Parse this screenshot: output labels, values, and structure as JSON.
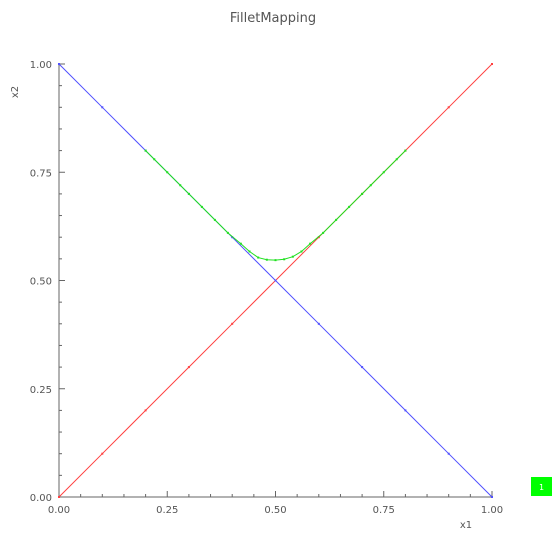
{
  "chart_data": {
    "type": "line",
    "title": "FilletMapping",
    "xlabel": "x1",
    "ylabel": "x2",
    "xlim": [
      0,
      1
    ],
    "ylim": [
      0,
      1
    ],
    "x_ticks": [
      "0.00",
      "0.25",
      "0.50",
      "0.75",
      "1.00"
    ],
    "y_ticks": [
      "0.00",
      "0.25",
      "0.50",
      "0.75",
      "1.00"
    ],
    "grid": false,
    "series": [
      {
        "color": "#ff4040",
        "points": [
          [
            0,
            0
          ],
          [
            0.1,
            0.1
          ],
          [
            0.2,
            0.2
          ],
          [
            0.3,
            0.3
          ],
          [
            0.4,
            0.4
          ],
          [
            0.5,
            0.5
          ],
          [
            0.6,
            0.6
          ],
          [
            0.7,
            0.7
          ],
          [
            0.8,
            0.8
          ],
          [
            0.9,
            0.9
          ],
          [
            1.0,
            1.0
          ]
        ]
      },
      {
        "color": "#5050ff",
        "points": [
          [
            0,
            1.0
          ],
          [
            0.1,
            0.9
          ],
          [
            0.2,
            0.8
          ],
          [
            0.3,
            0.7
          ],
          [
            0.4,
            0.6
          ],
          [
            0.5,
            0.5
          ],
          [
            0.6,
            0.4
          ],
          [
            0.7,
            0.3
          ],
          [
            0.8,
            0.2
          ],
          [
            0.9,
            0.1
          ],
          [
            1.0,
            0
          ]
        ]
      },
      {
        "color": "#20e020",
        "points": [
          [
            0.2,
            0.8
          ],
          [
            0.22,
            0.78
          ],
          [
            0.25,
            0.75
          ],
          [
            0.28,
            0.72
          ],
          [
            0.3,
            0.7
          ],
          [
            0.33,
            0.67
          ],
          [
            0.36,
            0.64
          ],
          [
            0.39,
            0.61
          ],
          [
            0.42,
            0.585
          ],
          [
            0.44,
            0.567
          ],
          [
            0.46,
            0.553
          ],
          [
            0.48,
            0.548
          ],
          [
            0.5,
            0.547
          ],
          [
            0.52,
            0.549
          ],
          [
            0.54,
            0.555
          ],
          [
            0.56,
            0.567
          ],
          [
            0.58,
            0.585
          ],
          [
            0.61,
            0.61
          ],
          [
            0.64,
            0.64
          ],
          [
            0.67,
            0.67
          ],
          [
            0.7,
            0.7
          ],
          [
            0.72,
            0.72
          ],
          [
            0.75,
            0.75
          ],
          [
            0.78,
            0.78
          ],
          [
            0.8,
            0.8
          ]
        ]
      }
    ]
  },
  "badge": {
    "label": "1",
    "color": "#00ff00"
  }
}
